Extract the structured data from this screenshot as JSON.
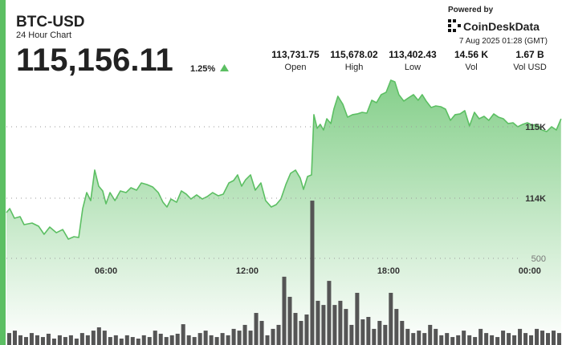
{
  "header": {
    "symbol": "BTC-USD",
    "subtitle": "24 Hour Chart",
    "price": "115,156.11",
    "change": "1.25%",
    "powered_by": "Powered by",
    "brand": "CoinDeskData",
    "timestamp": "7 Aug 2025 01:28 (GMT)",
    "stats": [
      {
        "value": "113,731.75",
        "label": "Open"
      },
      {
        "value": "115,678.02",
        "label": "High"
      },
      {
        "value": "113,402.43",
        "label": "Low"
      },
      {
        "value": "14.56 K",
        "label": "Vol"
      },
      {
        "value": "1.67 B",
        "label": "Vol USD"
      }
    ]
  },
  "chart_data": [
    {
      "type": "area",
      "color": "#5cbf63",
      "x": [
        1.77,
        1.91,
        2.11,
        2.35,
        2.52,
        2.86,
        3.14,
        3.37,
        3.61,
        3.89,
        4.16,
        4.4,
        4.64,
        4.84,
        5.01,
        5.18,
        5.35,
        5.52,
        5.69,
        5.86,
        6.0,
        6.17,
        6.38,
        6.61,
        6.85,
        7.06,
        7.3,
        7.5,
        7.74,
        7.98,
        8.22,
        8.42,
        8.59,
        8.76,
        9.0,
        9.2,
        9.41,
        9.61,
        9.85,
        10.09,
        10.3,
        10.53,
        10.77,
        10.98,
        11.22,
        11.42,
        11.59,
        11.76,
        11.93,
        12.14,
        12.34,
        12.58,
        12.78,
        13.02,
        13.23,
        13.43,
        13.64,
        13.84,
        14.05,
        14.25,
        14.39,
        14.56,
        14.73,
        14.83,
        14.97,
        15.1,
        15.24,
        15.38,
        15.55,
        15.68,
        15.85,
        16.06,
        16.26,
        16.47,
        16.67,
        16.88,
        17.08,
        17.29,
        17.49,
        17.69,
        17.9,
        18.1,
        18.27,
        18.44,
        18.65,
        18.85,
        19.06,
        19.26,
        19.43,
        19.6,
        19.81,
        20.01,
        20.22,
        20.42,
        20.63,
        20.83,
        21.04,
        21.24,
        21.44,
        21.65,
        21.85,
        22.06,
        22.26,
        22.47,
        22.67,
        22.88,
        23.08,
        23.29,
        23.49,
        23.7,
        23.9,
        24.11,
        24.31,
        24.52,
        24.72,
        24.93,
        25.13,
        25.33
      ],
      "values": [
        113797,
        113854,
        113719,
        113741,
        113629,
        113651,
        113606,
        113494,
        113595,
        113516,
        113561,
        113426,
        113460,
        113449,
        113854,
        114078,
        113966,
        114393,
        114168,
        114101,
        113921,
        114078,
        113966,
        114101,
        114078,
        114146,
        114112,
        114213,
        114191,
        114157,
        114078,
        113943,
        113876,
        113988,
        113943,
        114101,
        114056,
        113988,
        114045,
        113988,
        114022,
        114078,
        114033,
        114056,
        114213,
        114247,
        114326,
        114168,
        114258,
        114326,
        114112,
        114213,
        113966,
        113876,
        113910,
        113988,
        114191,
        114348,
        114393,
        114281,
        114123,
        114303,
        114326,
        115169,
        114978,
        115034,
        114955,
        115112,
        115045,
        115247,
        115427,
        115315,
        115135,
        115169,
        115180,
        115202,
        115191,
        115371,
        115337,
        115450,
        115483,
        115652,
        115629,
        115450,
        115360,
        115405,
        115450,
        115371,
        115450,
        115360,
        115270,
        115292,
        115281,
        115247,
        115090,
        115169,
        115180,
        115225,
        115011,
        115202,
        115112,
        115146,
        115090,
        115180,
        115135,
        115112,
        115045,
        115056,
        115000,
        115034,
        115056,
        115022,
        115034,
        114955,
        114933,
        115000,
        114955,
        115112
      ],
      "xlim": [
        1.77,
        25.37
      ],
      "ylim": [
        111943,
        115764
      ],
      "xticks": [
        {
          "value": 6,
          "label": "06:00"
        },
        {
          "value": 12,
          "label": "12:00"
        },
        {
          "value": 18,
          "label": "18:00"
        },
        {
          "value": 24,
          "label": "00:00"
        }
      ],
      "yticks": [
        {
          "value": 114000,
          "label": "114K"
        },
        {
          "value": 115000,
          "label": "115K"
        }
      ],
      "grid": true
    },
    {
      "type": "bar",
      "color": "#555555",
      "categories": [
        null,
        null,
        null,
        null,
        null,
        null,
        null,
        null,
        null,
        null,
        null,
        null,
        null,
        null,
        null,
        null,
        null,
        null,
        null,
        null,
        null,
        null,
        null,
        null,
        null,
        null,
        null,
        null,
        null,
        null,
        null,
        null,
        null,
        null,
        null,
        null,
        null,
        null,
        null,
        null,
        null,
        null,
        null,
        null,
        null,
        null,
        null,
        null,
        null,
        null,
        null,
        null,
        null,
        null,
        null,
        null,
        null,
        null,
        null,
        null,
        null,
        null,
        null,
        null,
        null,
        null,
        null,
        null,
        null,
        null,
        null,
        null,
        null,
        null,
        null,
        null,
        null,
        null,
        null,
        null,
        null,
        null,
        null,
        null,
        null,
        null,
        null,
        null,
        null,
        null,
        null,
        null,
        null,
        null,
        null,
        null,
        null,
        null,
        null
      ],
      "values": [
        69,
        83,
        56,
        46,
        69,
        56,
        46,
        65,
        37,
        56,
        46,
        56,
        37,
        69,
        56,
        83,
        102,
        83,
        46,
        56,
        37,
        56,
        46,
        37,
        56,
        46,
        83,
        65,
        46,
        56,
        65,
        120,
        56,
        46,
        69,
        83,
        56,
        46,
        69,
        56,
        93,
        83,
        116,
        83,
        185,
        139,
        56,
        93,
        116,
        394,
        278,
        185,
        139,
        176,
        833,
        255,
        231,
        370,
        231,
        255,
        208,
        116,
        301,
        148,
        162,
        93,
        139,
        116,
        301,
        208,
        139,
        93,
        69,
        83,
        69,
        116,
        93,
        56,
        69,
        46,
        56,
        83,
        56,
        46,
        93,
        69,
        56,
        46,
        83,
        69,
        56,
        93,
        69,
        56,
        93,
        83,
        69,
        83,
        69
      ],
      "ylim": [
        0,
        1574
      ],
      "yticks": [
        500
      ],
      "grid": true
    }
  ]
}
